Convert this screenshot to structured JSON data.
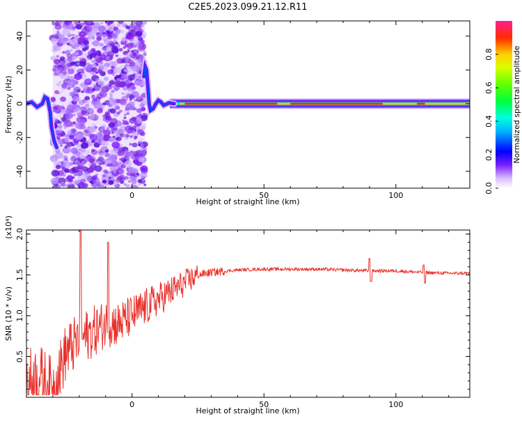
{
  "title": "C2E5.2023.099.21.12.R11",
  "colors": {
    "snr_line": "#e8302a",
    "spectrogram_speckle": "#8a2be2",
    "axis": "#000000"
  },
  "chart_data": [
    {
      "type": "heatmap",
      "xlabel": "Height of straight line (km)",
      "ylabel": "Frequency (Hz)",
      "xlim": [
        -40,
        128
      ],
      "ylim": [
        -50,
        49
      ],
      "x_ticks": [
        0,
        50,
        100
      ],
      "x_tick_labels": [
        "0",
        "50",
        "100"
      ],
      "y_ticks": [
        -40,
        -20,
        0,
        20,
        40
      ],
      "y_tick_labels": [
        "-40",
        "-20",
        "0",
        "20",
        "40"
      ],
      "colorbar": {
        "label": "Normalized spectral amplitude",
        "range": [
          0,
          1
        ],
        "ticks": [
          0.0,
          0.2,
          0.4,
          0.6,
          0.8
        ],
        "tick_labels": [
          "0.0",
          "0.2",
          "0.4",
          "0.6",
          "0.8"
        ],
        "colormap": "rainbow (white-violet-blue-cyan-green-yellow-red-magenta)"
      },
      "features": {
        "noise_region_km": [
          -30,
          5
        ],
        "carrier_start_km": 18,
        "carrier_frequency_hz": 0
      }
    },
    {
      "type": "line",
      "xlabel": "Height of straight line (km)",
      "ylabel": "SNR (10 * v/v)",
      "y_multiplier": "(x10⁴)",
      "xlim": [
        -40,
        128
      ],
      "ylim": [
        0.0,
        2.05
      ],
      "x_ticks": [
        0,
        50,
        100
      ],
      "x_tick_labels": [
        "0",
        "50",
        "100"
      ],
      "y_ticks": [
        0.5,
        1.0,
        1.5,
        2.0
      ],
      "y_tick_labels": [
        "0.5",
        "1.0",
        "1.5",
        "2.0"
      ],
      "series": [
        {
          "x": [
            -40,
            -35,
            -30,
            -25,
            -20,
            -15,
            -10,
            -5,
            0,
            5,
            10,
            15,
            20,
            25,
            30,
            40,
            50,
            60,
            70,
            80,
            90,
            100,
            110,
            120,
            128
          ],
          "values": [
            0.2,
            0.25,
            0.1,
            0.55,
            0.7,
            0.8,
            0.9,
            0.9,
            1.0,
            1.1,
            1.2,
            1.3,
            1.4,
            1.5,
            1.53,
            1.56,
            1.57,
            1.57,
            1.57,
            1.56,
            1.55,
            1.55,
            1.53,
            1.52,
            1.52
          ]
        }
      ]
    }
  ]
}
